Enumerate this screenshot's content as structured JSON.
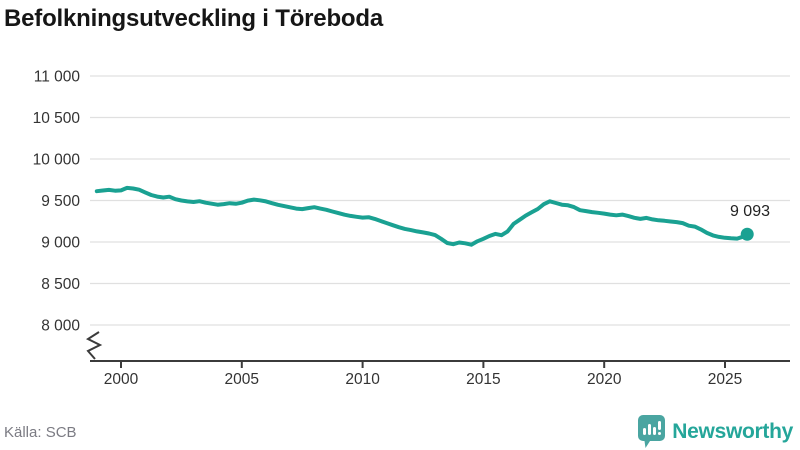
{
  "title": "Befolkningsutveckling i Töreboda",
  "source": {
    "text": "Källa: SCB"
  },
  "annotation": {
    "endpoint_label": "9 093"
  },
  "branding": {
    "name": "Newsworthy",
    "icon": "newsworthy-bubble-bar-chart-icon",
    "bubble_color": "#4aa5a1",
    "wordmark_color": "#25a69a"
  },
  "chart_data": {
    "type": "line",
    "title": "Befolkningsutveckling i Töreboda",
    "xlabel": "",
    "ylabel": "",
    "xlim": [
      1999,
      2026.3
    ],
    "ylim": [
      8000,
      11000
    ],
    "axis_break_below": 8000,
    "grid": true,
    "line_color": "#1aa192",
    "grid_color": "#e0e0e0",
    "axis_color": "#3b3b3b",
    "tick_label_color": "#333333",
    "yticks": [
      {
        "v": 11000,
        "label": "11 000"
      },
      {
        "v": 10500,
        "label": "10 500"
      },
      {
        "v": 10000,
        "label": "10 000"
      },
      {
        "v": 9500,
        "label": "9 500"
      },
      {
        "v": 9000,
        "label": "9 000"
      },
      {
        "v": 8500,
        "label": "8 500"
      },
      {
        "v": 8000,
        "label": "8 000"
      }
    ],
    "xticks": [
      {
        "v": 2000,
        "label": "2000"
      },
      {
        "v": 2005,
        "label": "2005"
      },
      {
        "v": 2010,
        "label": "2010"
      },
      {
        "v": 2015,
        "label": "2015"
      },
      {
        "v": 2020,
        "label": "2020"
      },
      {
        "v": 2025,
        "label": "2025"
      }
    ],
    "endpoint": {
      "x": 2025.92,
      "y": 9093,
      "label": "9 093"
    },
    "series": [
      {
        "name": "Befolkning",
        "points": [
          [
            1999.0,
            9612
          ],
          [
            1999.25,
            9620
          ],
          [
            1999.5,
            9628
          ],
          [
            1999.75,
            9618
          ],
          [
            2000.0,
            9622
          ],
          [
            2000.25,
            9652
          ],
          [
            2000.5,
            9645
          ],
          [
            2000.75,
            9630
          ],
          [
            2001.0,
            9598
          ],
          [
            2001.25,
            9566
          ],
          [
            2001.5,
            9547
          ],
          [
            2001.75,
            9536
          ],
          [
            2002.0,
            9546
          ],
          [
            2002.25,
            9516
          ],
          [
            2002.5,
            9500
          ],
          [
            2002.75,
            9489
          ],
          [
            2003.0,
            9482
          ],
          [
            2003.25,
            9492
          ],
          [
            2003.5,
            9474
          ],
          [
            2003.75,
            9462
          ],
          [
            2004.0,
            9449
          ],
          [
            2004.25,
            9457
          ],
          [
            2004.5,
            9468
          ],
          [
            2004.75,
            9460
          ],
          [
            2005.0,
            9474
          ],
          [
            2005.25,
            9499
          ],
          [
            2005.5,
            9511
          ],
          [
            2005.75,
            9503
          ],
          [
            2006.0,
            9489
          ],
          [
            2006.25,
            9468
          ],
          [
            2006.5,
            9448
          ],
          [
            2006.75,
            9433
          ],
          [
            2007.0,
            9418
          ],
          [
            2007.25,
            9403
          ],
          [
            2007.5,
            9396
          ],
          [
            2007.75,
            9408
          ],
          [
            2008.0,
            9419
          ],
          [
            2008.25,
            9403
          ],
          [
            2008.5,
            9388
          ],
          [
            2008.75,
            9368
          ],
          [
            2009.0,
            9348
          ],
          [
            2009.25,
            9329
          ],
          [
            2009.5,
            9315
          ],
          [
            2009.75,
            9304
          ],
          [
            2010.0,
            9294
          ],
          [
            2010.25,
            9299
          ],
          [
            2010.5,
            9278
          ],
          [
            2010.75,
            9253
          ],
          [
            2011.0,
            9228
          ],
          [
            2011.25,
            9203
          ],
          [
            2011.5,
            9178
          ],
          [
            2011.75,
            9158
          ],
          [
            2012.0,
            9143
          ],
          [
            2012.25,
            9128
          ],
          [
            2012.5,
            9116
          ],
          [
            2012.75,
            9103
          ],
          [
            2013.0,
            9083
          ],
          [
            2013.25,
            9038
          ],
          [
            2013.5,
            8988
          ],
          [
            2013.75,
            8973
          ],
          [
            2014.0,
            8994
          ],
          [
            2014.25,
            8984
          ],
          [
            2014.5,
            8968
          ],
          [
            2014.75,
            9008
          ],
          [
            2015.0,
            9038
          ],
          [
            2015.25,
            9072
          ],
          [
            2015.5,
            9098
          ],
          [
            2015.75,
            9082
          ],
          [
            2016.0,
            9128
          ],
          [
            2016.25,
            9218
          ],
          [
            2016.5,
            9268
          ],
          [
            2016.75,
            9318
          ],
          [
            2017.0,
            9358
          ],
          [
            2017.25,
            9398
          ],
          [
            2017.5,
            9455
          ],
          [
            2017.75,
            9490
          ],
          [
            2018.0,
            9470
          ],
          [
            2018.25,
            9450
          ],
          [
            2018.5,
            9442
          ],
          [
            2018.75,
            9420
          ],
          [
            2019.0,
            9383
          ],
          [
            2019.25,
            9372
          ],
          [
            2019.5,
            9360
          ],
          [
            2019.75,
            9352
          ],
          [
            2020.0,
            9342
          ],
          [
            2020.25,
            9330
          ],
          [
            2020.5,
            9322
          ],
          [
            2020.75,
            9330
          ],
          [
            2021.0,
            9312
          ],
          [
            2021.25,
            9292
          ],
          [
            2021.5,
            9278
          ],
          [
            2021.75,
            9290
          ],
          [
            2022.0,
            9272
          ],
          [
            2022.25,
            9262
          ],
          [
            2022.5,
            9255
          ],
          [
            2022.75,
            9247
          ],
          [
            2023.0,
            9240
          ],
          [
            2023.25,
            9228
          ],
          [
            2023.5,
            9196
          ],
          [
            2023.75,
            9186
          ],
          [
            2024.0,
            9152
          ],
          [
            2024.25,
            9110
          ],
          [
            2024.5,
            9080
          ],
          [
            2024.75,
            9062
          ],
          [
            2025.0,
            9050
          ],
          [
            2025.25,
            9044
          ],
          [
            2025.5,
            9041
          ],
          [
            2025.75,
            9064
          ],
          [
            2025.92,
            9093
          ]
        ]
      }
    ]
  }
}
